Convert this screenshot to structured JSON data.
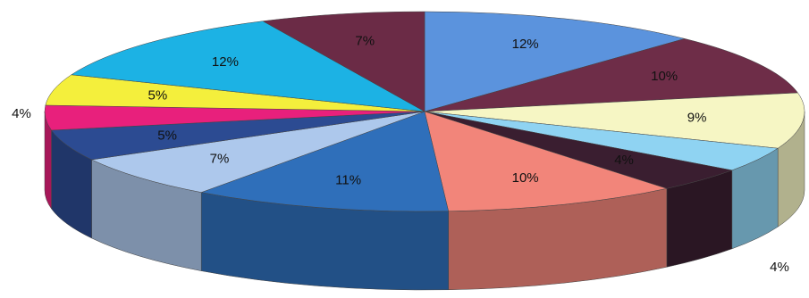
{
  "chart_data": {
    "type": "pie3d",
    "series": [
      {
        "values": [
          12,
          10,
          9,
          4,
          4,
          10,
          11,
          7,
          5,
          4,
          5,
          12,
          7
        ],
        "value_labels": [
          "12%",
          "10%",
          "9%",
          "4%",
          "4%",
          "10%",
          "11%",
          "7%",
          "5%",
          "4%",
          "5%",
          "12%",
          "7%"
        ],
        "colors": [
          "#5b93dd",
          "#6e2d48",
          "#f6f6c4",
          "#8fd3f2",
          "#3a1e30",
          "#f2857a",
          "#2f6fba",
          "#adc8ec",
          "#2c4b92",
          "#e8207c",
          "#f4ef3c",
          "#1cb2e4",
          "#6b2b46"
        ]
      }
    ]
  }
}
